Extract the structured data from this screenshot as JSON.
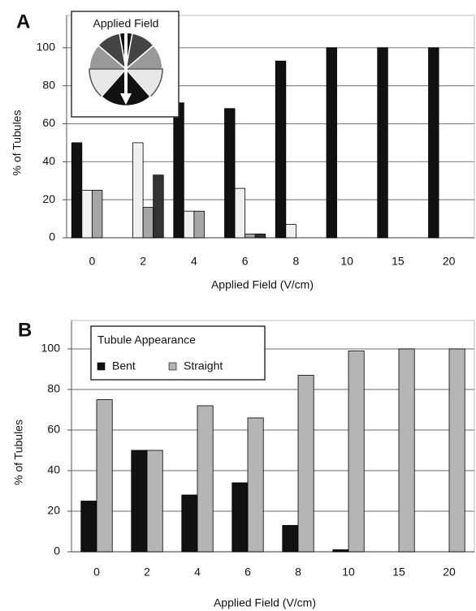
{
  "chart_data": [
    {
      "type": "bar",
      "panel_label": "A",
      "legend_title": "Applied Field",
      "ylabel": "% of Tubules",
      "xlabel": "Applied Field (V/cm)",
      "categories": [
        "0",
        "2",
        "4",
        "6",
        "8",
        "10",
        "15",
        "20"
      ],
      "series": [
        {
          "color": "#111111",
          "values": [
            50,
            0,
            71,
            68,
            93,
            100,
            100,
            100
          ]
        },
        {
          "color": "#f0f0f0",
          "values": [
            25,
            50,
            14,
            26,
            7,
            0,
            0,
            0
          ]
        },
        {
          "color": "#a6a6a6",
          "values": [
            25,
            16,
            14,
            2,
            0,
            0,
            0,
            0
          ]
        },
        {
          "color": "#333333",
          "values": [
            0,
            33,
            0,
            2,
            0,
            0,
            0,
            0
          ]
        }
      ],
      "ylim": [
        0,
        117
      ],
      "yticks": [
        0,
        20,
        40,
        60,
        80,
        100
      ],
      "grid": true
    },
    {
      "type": "bar",
      "panel_label": "B",
      "legend_title": "Tubule Appearance",
      "ylabel": "% of Tubules",
      "xlabel": "Applied Field (V/cm)",
      "categories": [
        "0",
        "2",
        "4",
        "6",
        "8",
        "10",
        "15",
        "20"
      ],
      "series": [
        {
          "name": "Bent",
          "color": "#111111",
          "values": [
            25,
            50,
            28,
            34,
            13,
            1,
            0,
            0
          ]
        },
        {
          "name": "Straight",
          "color": "#b5b5b5",
          "values": [
            75,
            50,
            72,
            66,
            87,
            99,
            100,
            100
          ]
        }
      ],
      "ylim": [
        0,
        114
      ],
      "yticks": [
        0,
        20,
        40,
        60,
        80,
        100
      ],
      "grid": true
    }
  ]
}
